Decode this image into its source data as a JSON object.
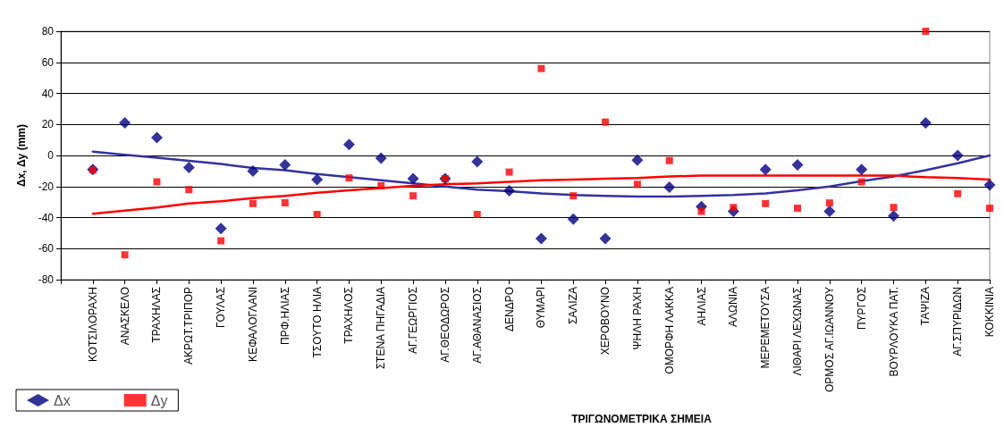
{
  "chart_data": {
    "type": "scatter",
    "xlabel": "ΤΡΙΓΩΝΟΜΕΤΡΙΚΑ ΣΗΜΕΙΑ",
    "ylabel": "Δx, Δy (mm)",
    "categories": [
      "ΚΟΤΣΙΛΟΡΑΧΗ",
      "ΑΝΑΣΚΕΛΟ",
      "ΤΡΑΧΗΛΑΣ",
      "ΑΚΡΩΤ.ΤΡΙΠΟΡ",
      "ΓΟΥΛΑΣ",
      "ΚΕΦΑΛΟΓΛΑΝΙ",
      "ΠΡΦ.ΗΛΙΑΣ",
      "ΤΣΟΥΤΟ ΗΛΙΑ",
      "ΤΡΑΧΗΛΟΣ",
      "ΣΤΕΝΑ ΠΗΓΑΔΙΑ",
      "ΑΓ.ΓΕΩΡΓΙΟΣ",
      "ΑΓ.ΘΕΟΔΩΡΟΣ",
      "ΑΓ.ΑΘΑΝΑΣΙΟΣ",
      "ΔΕΝΔΡΟ",
      "ΘΥΜΑΡΙ",
      "ΣΑΛΙΖΑ",
      "ΧΕΡΟΒΟΥΝΟ",
      "ΨΗΛΗ ΡΑΧΗ",
      "ΟΜΟΡΦΗ ΛΑΚΚΑ",
      "ΑΗΛΙΑΣ",
      "ΑΛΩΝΙΑ",
      "ΜΕΡΕΜΕΤΟΥΣΑ",
      "ΛΙΘΑΡΙ ΛΕΧΩΝΑΣ",
      "ΟΡΜΟΣ ΑΓ.ΙΩΑΝΝΟΥ",
      "ΠΥΡΓΟΣ",
      "ΒΟΥΡΛΟΥΚΑ ΠΑΤ.",
      "ΤΑΨΙΖΑ",
      "ΑΓ.ΣΠΥΡΙΔΩΝ",
      "ΚΟΚΚΙΝΙΑ"
    ],
    "series": [
      {
        "name": "Δx",
        "color": "#000080",
        "marker": "diamond",
        "values": [
          -9,
          21,
          11.5,
          -7.7,
          -47,
          -10,
          -6,
          -15.6,
          7,
          -1.7,
          -15,
          -15,
          -4,
          -22.7,
          -53.5,
          -41,
          -53.5,
          -3,
          -20.5,
          -33,
          -36,
          -9,
          -6,
          -36,
          -9,
          -39,
          21,
          0,
          -19
        ]
      },
      {
        "name": "Δy",
        "color": "#ff0000",
        "marker": "square",
        "values": [
          -9.4,
          -64,
          -17,
          -22,
          -55,
          -31,
          -30.5,
          -38,
          -14.5,
          -19.5,
          -26,
          -15,
          -38,
          -10.7,
          56,
          -26,
          21.5,
          -18.6,
          -3.3,
          -36,
          -33.5,
          -31,
          -34,
          -30.6,
          -17,
          -33.5,
          80,
          -24.6,
          -34
        ]
      },
      {
        "type": "line",
        "color": "#3333a0",
        "values": [
          2.5,
          0.5,
          -1.5,
          -3.5,
          -5.5,
          -8,
          -9.5,
          -12,
          -14,
          -16,
          -18,
          -20,
          -22,
          -23,
          -24.5,
          -25.5,
          -26,
          -26.5,
          -26.5,
          -26,
          -25.5,
          -24.5,
          -22.5,
          -20,
          -16.5,
          -13.5,
          -9.5,
          -5,
          0
        ]
      },
      {
        "type": "line",
        "color": "#ff0000",
        "values": [
          -37.5,
          -35.5,
          -33.5,
          -31,
          -29.5,
          -27.5,
          -26,
          -24,
          -22.5,
          -21,
          -19.5,
          -18.5,
          -18,
          -17,
          -16,
          -15.5,
          -15,
          -14.5,
          -13.5,
          -13,
          -13,
          -13,
          -13,
          -13,
          -13,
          -13,
          -14,
          -14.5,
          -15.5
        ]
      }
    ],
    "ylim": [
      -80,
      80
    ],
    "yticks": [
      -80,
      -60,
      -40,
      -20,
      0,
      20,
      40,
      60,
      80
    ],
    "grid": "y",
    "legend": "bottom left"
  }
}
